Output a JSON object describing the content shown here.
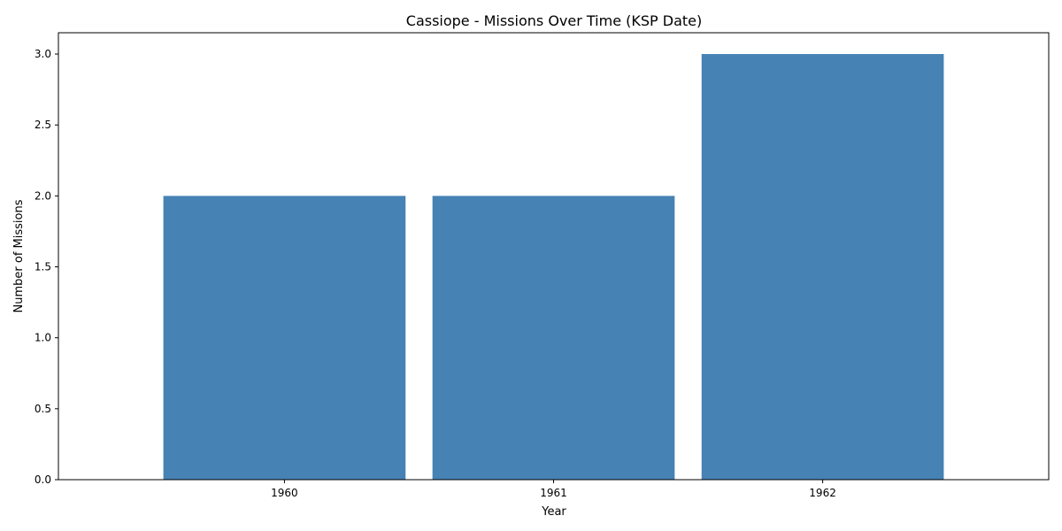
{
  "chart_data": {
    "type": "bar",
    "title": "Cassiope - Missions Over Time (KSP Date)",
    "xlabel": "Year",
    "ylabel": "Number of Missions",
    "categories": [
      "1960",
      "1961",
      "1962"
    ],
    "values": [
      2,
      2,
      3
    ],
    "ylim": [
      0,
      3.15
    ],
    "yticks": [
      "0.0",
      "0.5",
      "1.0",
      "1.5",
      "2.0",
      "2.5",
      "3.0"
    ],
    "grid": false,
    "bar_color": "#4682b4"
  }
}
